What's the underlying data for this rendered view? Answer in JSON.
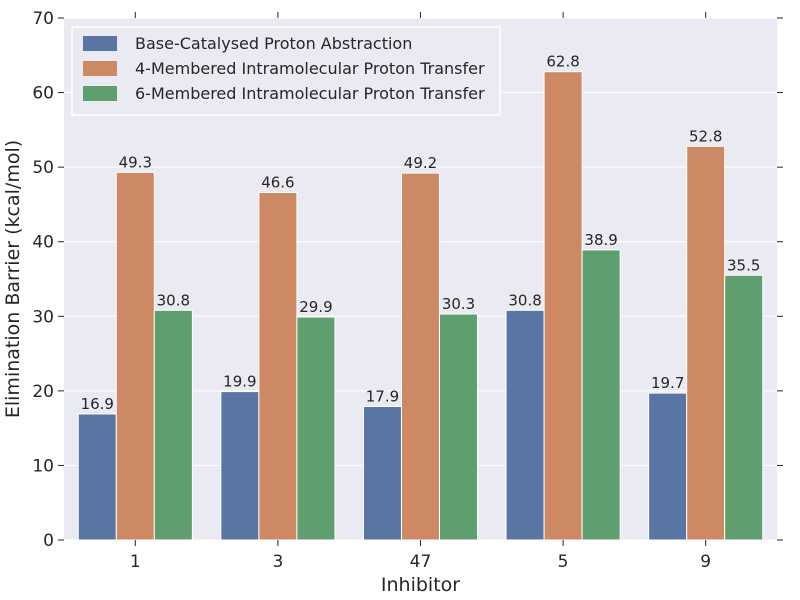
{
  "chart_data": {
    "type": "bar",
    "title": "",
    "xlabel": "Inhibitor",
    "ylabel": "Elimination Barrier (kcal/mol)",
    "categories": [
      "1",
      "3",
      "47",
      "5",
      "9"
    ],
    "ylim": [
      0,
      70
    ],
    "yticks": [
      0,
      10,
      20,
      30,
      40,
      50,
      60,
      70
    ],
    "grid": true,
    "legend_position": "top-left",
    "series": [
      {
        "name": "Base-Catalysed Proton Abstraction",
        "color": "#5875a4",
        "values": [
          16.9,
          19.9,
          17.9,
          30.8,
          19.7
        ]
      },
      {
        "name": "4-Membered Intramolecular Proton Transfer",
        "color": "#cc8963",
        "values": [
          49.3,
          46.6,
          49.2,
          62.8,
          52.8
        ]
      },
      {
        "name": "6-Membered Intramolecular Proton Transfer",
        "color": "#5f9e6e",
        "values": [
          30.8,
          29.9,
          30.3,
          38.9,
          35.5
        ]
      }
    ]
  }
}
